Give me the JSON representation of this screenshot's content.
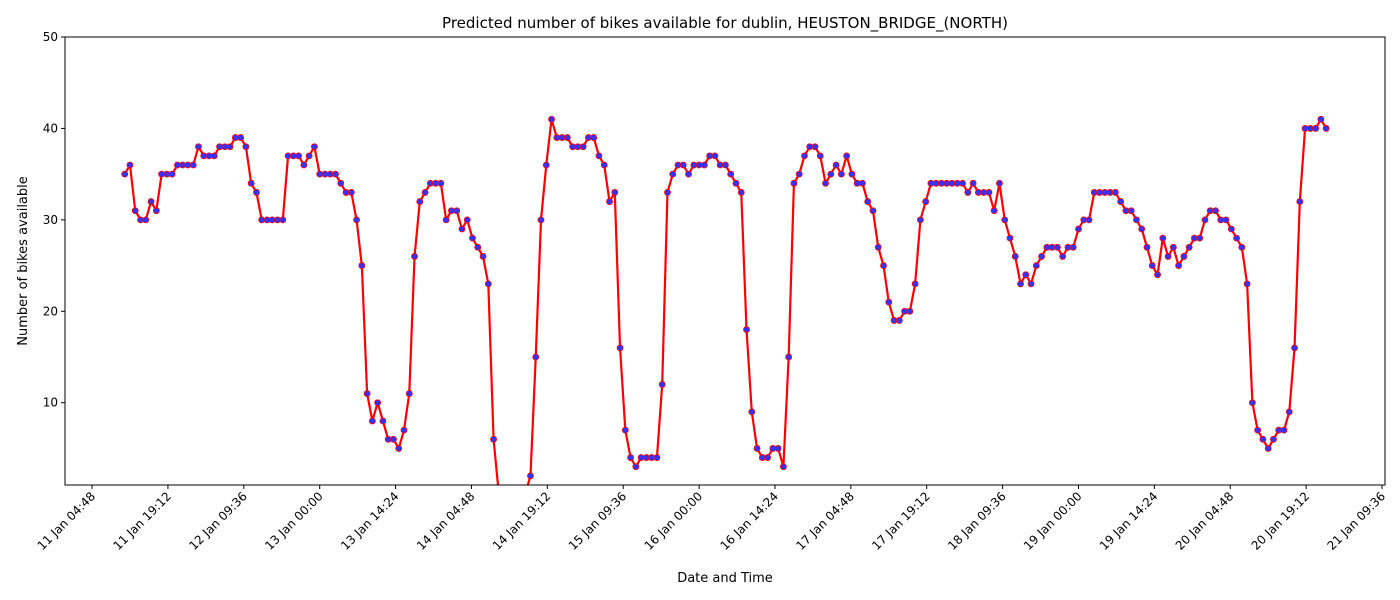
{
  "chart_data": {
    "type": "line",
    "title": "Predicted number of bikes available for dublin, HEUSTON_BRIDGE_(NORTH)",
    "x_label": "Date and Time",
    "y_label": "Number of bikes available",
    "color": "#ff0000",
    "marker_color": "#3333ff",
    "x": [
      "11 Jan 11:00",
      "11 Jan 12:00",
      "11 Jan 13:00",
      "11 Jan 14:00",
      "11 Jan 15:00",
      "11 Jan 16:00",
      "11 Jan 17:00",
      "11 Jan 18:00",
      "11 Jan 19:00",
      "11 Jan 20:00",
      "11 Jan 21:00",
      "11 Jan 22:00",
      "11 Jan 23:00",
      "12 Jan 00:00",
      "12 Jan 01:00",
      "12 Jan 02:00",
      "12 Jan 03:00",
      "12 Jan 04:00",
      "12 Jan 05:00",
      "12 Jan 06:00",
      "12 Jan 07:00",
      "12 Jan 08:00",
      "12 Jan 09:00",
      "12 Jan 10:00",
      "12 Jan 11:00",
      "12 Jan 12:00",
      "12 Jan 13:00",
      "12 Jan 14:00",
      "12 Jan 15:00",
      "12 Jan 16:00",
      "12 Jan 17:00",
      "12 Jan 18:00",
      "12 Jan 19:00",
      "12 Jan 20:00",
      "12 Jan 21:00",
      "12 Jan 22:00",
      "12 Jan 23:00",
      "13 Jan 00:00",
      "13 Jan 01:00",
      "13 Jan 02:00",
      "13 Jan 03:00",
      "13 Jan 04:00",
      "13 Jan 05:00",
      "13 Jan 06:00",
      "13 Jan 07:00",
      "13 Jan 08:00",
      "13 Jan 09:00",
      "13 Jan 10:00",
      "13 Jan 11:00",
      "13 Jan 12:00",
      "13 Jan 13:00",
      "13 Jan 14:00",
      "13 Jan 15:00",
      "13 Jan 16:00",
      "13 Jan 17:00",
      "13 Jan 18:00",
      "13 Jan 19:00",
      "13 Jan 20:00",
      "13 Jan 21:00",
      "13 Jan 22:00",
      "13 Jan 23:00",
      "14 Jan 00:00",
      "14 Jan 01:00",
      "14 Jan 02:00",
      "14 Jan 03:00",
      "14 Jan 04:00",
      "14 Jan 05:00",
      "14 Jan 06:00",
      "14 Jan 07:00",
      "14 Jan 08:00",
      "14 Jan 09:00",
      "14 Jan 10:00",
      "14 Jan 11:00",
      "14 Jan 12:00",
      "14 Jan 13:00",
      "14 Jan 14:00",
      "14 Jan 15:00",
      "14 Jan 16:00",
      "14 Jan 17:00",
      "14 Jan 18:00",
      "14 Jan 19:00",
      "14 Jan 20:00",
      "14 Jan 21:00",
      "14 Jan 22:00",
      "14 Jan 23:00",
      "15 Jan 00:00",
      "15 Jan 01:00",
      "15 Jan 02:00",
      "15 Jan 03:00",
      "15 Jan 04:00",
      "15 Jan 05:00",
      "15 Jan 06:00",
      "15 Jan 07:00",
      "15 Jan 08:00",
      "15 Jan 09:00",
      "15 Jan 10:00",
      "15 Jan 11:00",
      "15 Jan 12:00",
      "15 Jan 13:00",
      "15 Jan 14:00",
      "15 Jan 15:00",
      "15 Jan 16:00",
      "15 Jan 17:00",
      "15 Jan 18:00",
      "15 Jan 19:00",
      "15 Jan 20:00",
      "15 Jan 21:00",
      "15 Jan 22:00",
      "15 Jan 23:00",
      "16 Jan 00:00",
      "16 Jan 01:00",
      "16 Jan 02:00",
      "16 Jan 03:00",
      "16 Jan 04:00",
      "16 Jan 05:00",
      "16 Jan 06:00",
      "16 Jan 07:00",
      "16 Jan 08:00",
      "16 Jan 09:00",
      "16 Jan 10:00",
      "16 Jan 11:00",
      "16 Jan 12:00",
      "16 Jan 13:00",
      "16 Jan 14:00",
      "16 Jan 15:00",
      "16 Jan 16:00",
      "16 Jan 17:00",
      "16 Jan 18:00",
      "16 Jan 19:00",
      "16 Jan 20:00",
      "16 Jan 21:00",
      "16 Jan 22:00",
      "16 Jan 23:00",
      "17 Jan 00:00",
      "17 Jan 01:00",
      "17 Jan 02:00",
      "17 Jan 03:00",
      "17 Jan 04:00",
      "17 Jan 05:00",
      "17 Jan 06:00",
      "17 Jan 07:00",
      "17 Jan 08:00",
      "17 Jan 09:00",
      "17 Jan 10:00",
      "17 Jan 11:00",
      "17 Jan 12:00",
      "17 Jan 13:00",
      "17 Jan 14:00",
      "17 Jan 15:00",
      "17 Jan 16:00",
      "17 Jan 17:00",
      "17 Jan 18:00",
      "17 Jan 19:00",
      "17 Jan 20:00",
      "17 Jan 21:00",
      "17 Jan 22:00",
      "17 Jan 23:00",
      "18 Jan 00:00",
      "18 Jan 01:00",
      "18 Jan 02:00",
      "18 Jan 03:00",
      "18 Jan 04:00",
      "18 Jan 05:00",
      "18 Jan 06:00",
      "18 Jan 07:00",
      "18 Jan 08:00",
      "18 Jan 09:00",
      "18 Jan 10:00",
      "18 Jan 11:00",
      "18 Jan 12:00",
      "18 Jan 13:00",
      "18 Jan 14:00",
      "18 Jan 15:00",
      "18 Jan 16:00",
      "18 Jan 17:00",
      "18 Jan 18:00",
      "18 Jan 19:00",
      "18 Jan 20:00",
      "18 Jan 21:00",
      "18 Jan 22:00",
      "18 Jan 23:00",
      "19 Jan 00:00",
      "19 Jan 01:00",
      "19 Jan 02:00",
      "19 Jan 03:00",
      "19 Jan 04:00",
      "19 Jan 05:00",
      "19 Jan 06:00",
      "19 Jan 07:00",
      "19 Jan 08:00",
      "19 Jan 09:00",
      "19 Jan 10:00",
      "19 Jan 11:00",
      "19 Jan 12:00",
      "19 Jan 13:00",
      "19 Jan 14:00",
      "19 Jan 15:00",
      "19 Jan 16:00",
      "19 Jan 17:00",
      "19 Jan 18:00",
      "19 Jan 19:00",
      "19 Jan 20:00",
      "19 Jan 21:00",
      "19 Jan 22:00",
      "19 Jan 23:00",
      "20 Jan 00:00",
      "20 Jan 01:00",
      "20 Jan 02:00",
      "20 Jan 03:00",
      "20 Jan 04:00",
      "20 Jan 05:00",
      "20 Jan 06:00",
      "20 Jan 07:00",
      "20 Jan 08:00",
      "20 Jan 09:00",
      "20 Jan 10:00",
      "20 Jan 11:00",
      "20 Jan 12:00",
      "20 Jan 13:00",
      "20 Jan 14:00",
      "20 Jan 15:00",
      "20 Jan 16:00",
      "20 Jan 17:00",
      "20 Jan 18:00",
      "20 Jan 19:00",
      "20 Jan 20:00",
      "20 Jan 21:00",
      "20 Jan 22:00",
      "20 Jan 23:00"
    ],
    "values": [
      35,
      36,
      31,
      30,
      30,
      32,
      31,
      35,
      35,
      35,
      36,
      36,
      36,
      36,
      38,
      37,
      37,
      37,
      38,
      38,
      38,
      39,
      39,
      38,
      34,
      33,
      30,
      30,
      30,
      30,
      30,
      37,
      37,
      37,
      36,
      37,
      38,
      35,
      35,
      35,
      35,
      34,
      33,
      33,
      30,
      25,
      11,
      8,
      10,
      8,
      6,
      6,
      5,
      7,
      11,
      26,
      32,
      33,
      34,
      34,
      34,
      30,
      31,
      31,
      29,
      30,
      28,
      27,
      26,
      23,
      6,
      0,
      0,
      0,
      0,
      0,
      0,
      2,
      15,
      30,
      36,
      41,
      39,
      39,
      39,
      38,
      38,
      38,
      39,
      39,
      37,
      36,
      32,
      33,
      16,
      7,
      4,
      3,
      4,
      4,
      4,
      4,
      12,
      33,
      35,
      36,
      36,
      35,
      36,
      36,
      36,
      37,
      37,
      36,
      36,
      35,
      34,
      33,
      18,
      9,
      5,
      4,
      4,
      5,
      5,
      3,
      15,
      34,
      35,
      37,
      38,
      38,
      37,
      34,
      35,
      36,
      35,
      37,
      35,
      34,
      34,
      32,
      31,
      27,
      25,
      21,
      19,
      19,
      20,
      20,
      23,
      30,
      32,
      34,
      34,
      34,
      34,
      34,
      34,
      34,
      33,
      34,
      33,
      33,
      33,
      31,
      34,
      30,
      28,
      26,
      23,
      24,
      23,
      25,
      26,
      27,
      27,
      27,
      26,
      27,
      27,
      29,
      30,
      30,
      33,
      33,
      33,
      33,
      33,
      32,
      31,
      31,
      30,
      29,
      27,
      25,
      24,
      28,
      26,
      27,
      25,
      26,
      27,
      28,
      28,
      30,
      31,
      31,
      30,
      30,
      29,
      28,
      27,
      23,
      10,
      7,
      6,
      5,
      6,
      7,
      7,
      9,
      16,
      32,
      40,
      40,
      40,
      41,
      40
    ],
    "xlim": [
      "10 Jan 23:40",
      "21 Jan 10:10"
    ],
    "xticks": [
      "11 Jan 04:48",
      "11 Jan 19:12",
      "12 Jan 09:36",
      "13 Jan 00:00",
      "13 Jan 14:24",
      "14 Jan 04:48",
      "14 Jan 19:12",
      "15 Jan 09:36",
      "16 Jan 00:00",
      "16 Jan 14:24",
      "17 Jan 04:48",
      "17 Jan 19:12",
      "18 Jan 09:36",
      "19 Jan 00:00",
      "19 Jan 14:24",
      "20 Jan 04:48",
      "20 Jan 19:12",
      "21 Jan 09:36"
    ],
    "ylim": [
      1,
      50
    ],
    "yticks": [
      10,
      20,
      30,
      40,
      50
    ],
    "grid": false
  }
}
